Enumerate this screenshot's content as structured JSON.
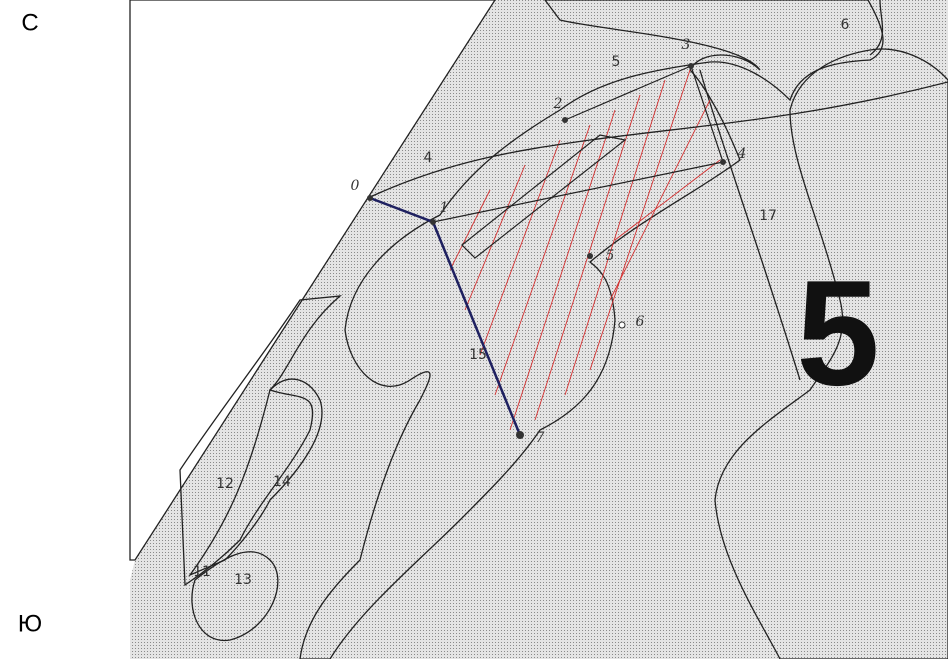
{
  "compass": {
    "north": "С",
    "south": "Ю"
  },
  "sheet_number": "5",
  "zones": [
    "6",
    "5",
    "4",
    "17",
    "15",
    "12",
    "14",
    "11",
    "13"
  ],
  "points": [
    "0",
    "1",
    "2",
    "3",
    "4",
    "5",
    "6",
    "7"
  ]
}
